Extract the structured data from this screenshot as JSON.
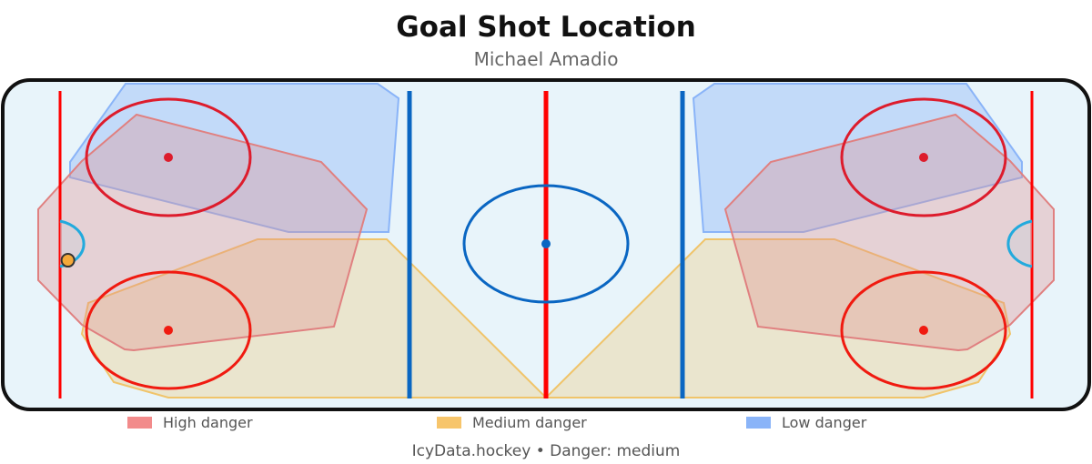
{
  "chart_data": {
    "type": "scatter",
    "title": "Goal Shot Location",
    "subtitle": "Michael Amadio",
    "xlim": [
      -100,
      100
    ],
    "ylim": [
      -42.5,
      42.5
    ],
    "points": [
      {
        "x": -88,
        "y": -4,
        "danger": "medium"
      }
    ],
    "legend": [
      {
        "label": "High danger",
        "color": "#f28b8b"
      },
      {
        "label": "Medium danger",
        "color": "#f7c56b"
      },
      {
        "label": "Low danger",
        "color": "#8ab4f8"
      }
    ],
    "legend_placement": "bottom",
    "footer": "IcyData.hockey • Danger: medium"
  },
  "colors": {
    "ice": "#e8f4fa",
    "red_line": "#ff0000",
    "blue_line": "#0a66c2",
    "shot_fill": "#f4a93a",
    "zone_high": "#e09090",
    "zone_medium": "#f0c46a",
    "zone_low": "#8ab4f8"
  }
}
